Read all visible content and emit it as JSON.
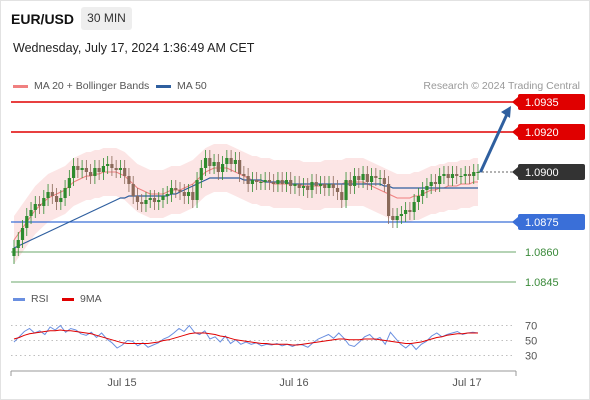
{
  "header": {
    "symbol": "EUR/USD",
    "timeframe": "30 MIN",
    "date": "Wednesday, July 17, 2024 1:36:49 AM CET"
  },
  "legend": {
    "ma20": "MA 20 + Bollinger Bands",
    "ma50": "MA 50",
    "credit": "Research © 2024 Trading Central"
  },
  "colors": {
    "bull": "#2e8b2e",
    "bear": "#8a6a5a",
    "ma20": "#f08080",
    "ma50": "#2f5f9f",
    "band": "#fbe0e0",
    "resistance": "#e00000",
    "pivot": "#3a6fd8",
    "support": "#3a8a3a",
    "last": "#333333",
    "rsi": "#6a8fe0",
    "rsi_ma": "#e00000",
    "arrow": "#2f5f9f"
  },
  "chart_data": [
    {
      "type": "candlestick",
      "x_labels": [
        "Jul 15",
        "Jul 16",
        "Jul 17"
      ],
      "price_levels": [
        {
          "value": "1.0935",
          "kind": "resistance"
        },
        {
          "value": "1.0920",
          "kind": "resistance"
        },
        {
          "value": "1.0900",
          "kind": "last"
        },
        {
          "value": "1.0875",
          "kind": "pivot"
        },
        {
          "value": "1.0860",
          "kind": "support"
        },
        {
          "value": "1.0845",
          "kind": "support"
        }
      ],
      "ylim": [
        1.0835,
        1.094
      ],
      "forecast_arrow": {
        "from": 1.09,
        "to": 1.0935,
        "direction": "up"
      },
      "close": [
        1.0862,
        1.0866,
        1.0872,
        1.0878,
        1.0881,
        1.0884,
        1.0883,
        1.0887,
        1.089,
        1.0888,
        1.0885,
        1.0887,
        1.0892,
        1.0897,
        1.0903,
        1.0901,
        1.0902,
        1.09,
        1.0898,
        1.0902,
        1.09,
        1.0903,
        1.0904,
        1.0902,
        1.0901,
        1.0902,
        1.0898,
        1.0894,
        1.0888,
        1.0885,
        1.0884,
        1.0886,
        1.0887,
        1.0885,
        1.0886,
        1.0888,
        1.0889,
        1.0892,
        1.0891,
        1.089,
        1.0888,
        1.089,
        1.0886,
        1.0896,
        1.0902,
        1.0907,
        1.0903,
        1.0905,
        1.09,
        1.0904,
        1.0907,
        1.0904,
        1.0906,
        1.0899,
        1.0898,
        1.0894,
        1.0896,
        1.0895,
        1.0895,
        1.0896,
        1.0895,
        1.0894,
        1.0896,
        1.0894,
        1.0896,
        1.0893,
        1.0894,
        1.0892,
        1.0893,
        1.0891,
        1.0895,
        1.0893,
        1.0894,
        1.0892,
        1.0894,
        1.0892,
        1.089,
        1.0886,
        1.0896,
        1.0893,
        1.0898,
        1.0896,
        1.0899,
        1.0895,
        1.0898,
        1.0897,
        1.0897,
        1.0894,
        1.0878,
        1.0876,
        1.0878,
        1.0879,
        1.0881,
        1.088,
        1.0885,
        1.0888,
        1.0891,
        1.0893,
        1.0895,
        1.0894,
        1.0898,
        1.0899,
        1.0897,
        1.0899,
        1.0898,
        1.0898,
        1.0899,
        1.0898,
        1.09,
        1.09
      ],
      "ma20": [
        1.0866,
        1.0869,
        1.0872,
        1.0875,
        1.0878,
        1.0881,
        1.0883,
        1.0885,
        1.0887,
        1.0888,
        1.0889,
        1.089,
        1.0891,
        1.0893,
        1.0895,
        1.0896,
        1.0897,
        1.0898,
        1.0898,
        1.0899,
        1.0899,
        1.09,
        1.09,
        1.09,
        1.09,
        1.0899,
        1.0898,
        1.0896,
        1.0894,
        1.0892,
        1.0891,
        1.089,
        1.0889,
        1.0889,
        1.0889,
        1.0889,
        1.089,
        1.0891,
        1.0891,
        1.0891,
        1.0892,
        1.0893,
        1.0894,
        1.0896,
        1.0898,
        1.09,
        1.0901,
        1.0902,
        1.0902,
        1.0902,
        1.0902,
        1.0901,
        1.09,
        1.0899,
        1.0898,
        1.0897,
        1.0896,
        1.0896,
        1.0895,
        1.0895,
        1.0895,
        1.0894,
        1.0894,
        1.0894,
        1.0894,
        1.0894,
        1.0894,
        1.0894,
        1.0893,
        1.0893,
        1.0893,
        1.0893,
        1.0893,
        1.0894,
        1.0894,
        1.0894,
        1.0894,
        1.0894,
        1.0895,
        1.0895,
        1.0895,
        1.0895,
        1.0895,
        1.0894,
        1.0893,
        1.0892,
        1.0891,
        1.089,
        1.0889,
        1.0888,
        1.0887,
        1.0887,
        1.0887,
        1.0887,
        1.0888,
        1.0888,
        1.0889,
        1.089,
        1.0891,
        1.0891,
        1.0892,
        1.0892,
        1.0893,
        1.0893,
        1.0893,
        1.0894,
        1.0894,
        1.0894,
        1.0895,
        1.0895
      ],
      "ma50": [
        1.0862,
        1.0863,
        1.0864,
        1.0865,
        1.0866,
        1.0867,
        1.0868,
        1.0869,
        1.087,
        1.0871,
        1.0872,
        1.0873,
        1.0874,
        1.0875,
        1.0876,
        1.0877,
        1.0878,
        1.0879,
        1.088,
        1.0881,
        1.0882,
        1.0883,
        1.0884,
        1.0885,
        1.0886,
        1.0887,
        1.0887,
        1.0888,
        1.0888,
        1.0888,
        1.0888,
        1.0888,
        1.0888,
        1.0888,
        1.0888,
        1.0888,
        1.0888,
        1.0889,
        1.0889,
        1.089,
        1.0891,
        1.0892,
        1.0893,
        1.0894,
        1.0895,
        1.0896,
        1.0897,
        1.0897,
        1.0897,
        1.0897,
        1.0897,
        1.0897,
        1.0897,
        1.0897,
        1.0896,
        1.0896,
        1.0896,
        1.0896,
        1.0896,
        1.0895,
        1.0895,
        1.0895,
        1.0895,
        1.0895,
        1.0895,
        1.0894,
        1.0894,
        1.0894,
        1.0894,
        1.0894,
        1.0894,
        1.0894,
        1.0894,
        1.0894,
        1.0894,
        1.0894,
        1.0894,
        1.0894,
        1.0894,
        1.0894,
        1.0894,
        1.0894,
        1.0894,
        1.0894,
        1.0894,
        1.0894,
        1.0894,
        1.0893,
        1.0893,
        1.0892,
        1.0892,
        1.0892,
        1.0892,
        1.0892,
        1.0892,
        1.0892,
        1.0892,
        1.0892,
        1.0892,
        1.0892,
        1.0892,
        1.0892,
        1.0892,
        1.0892,
        1.0892,
        1.0892,
        1.0892,
        1.0892,
        1.0892,
        1.0892
      ],
      "bb_width": 0.0012
    },
    {
      "type": "line",
      "name": "RSI",
      "legend": [
        "RSI",
        "9MA"
      ],
      "ylim": [
        20,
        80
      ],
      "y_ticks": [
        "70",
        "50",
        "30"
      ],
      "rsi": [
        48,
        55,
        62,
        66,
        60,
        63,
        58,
        68,
        64,
        70,
        61,
        66,
        64,
        59,
        57,
        61,
        54,
        60,
        52,
        47,
        40,
        44,
        50,
        49,
        43,
        47,
        41,
        44,
        47,
        52,
        55,
        60,
        66,
        62,
        70,
        61,
        58,
        63,
        52,
        55,
        48,
        56,
        46,
        51,
        45,
        48,
        45,
        47,
        43,
        45,
        44,
        46,
        43,
        45,
        42,
        45,
        44,
        41,
        47,
        52,
        55,
        58,
        53,
        60,
        53,
        44,
        42,
        48,
        55,
        58,
        51,
        54,
        45,
        61,
        53,
        45,
        40,
        46,
        38,
        45,
        49,
        56,
        60,
        55,
        58,
        60,
        62,
        58,
        60,
        61,
        60
      ],
      "ma": [
        52,
        54,
        57,
        59,
        60,
        61,
        62,
        63,
        63,
        64,
        63,
        63,
        62,
        61,
        60,
        59,
        57,
        55,
        53,
        51,
        49,
        47,
        46,
        46,
        46,
        46,
        46,
        47,
        48,
        50,
        51,
        53,
        55,
        57,
        59,
        60,
        60,
        60,
        59,
        58,
        56,
        55,
        53,
        51,
        50,
        49,
        48,
        47,
        46,
        46,
        45,
        45,
        45,
        45,
        44,
        44,
        45,
        46,
        47,
        48,
        49,
        50,
        51,
        52,
        52,
        51,
        51,
        51,
        52,
        52,
        52,
        51,
        50,
        49,
        48,
        47,
        46,
        46,
        47,
        48,
        50,
        52,
        54,
        55,
        57,
        58,
        59,
        59,
        60,
        60,
        60
      ]
    }
  ]
}
